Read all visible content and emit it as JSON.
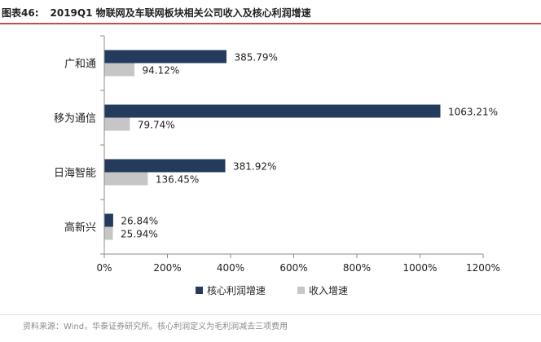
{
  "figure": {
    "number": "图表46:",
    "title": "2019Q1 物联网及车联网板块相关公司收入及核心利润增速",
    "source": "资料来源：Wind，华泰证券研究所。核心利润定义为毛利润减去三项费用"
  },
  "colors": {
    "series_core": "#243b5e",
    "series_revenue": "#c6c6c6",
    "title_rule": "#c0504d"
  },
  "chart_data": {
    "type": "bar",
    "orientation": "horizontal",
    "categories": [
      "广和通",
      "移为通信",
      "日海智能",
      "高新兴"
    ],
    "series": [
      {
        "name": "核心利润增速",
        "values": [
          385.79,
          1063.21,
          381.92,
          26.84
        ],
        "labels": [
          "385.79%",
          "1063.21%",
          "381.92%",
          "26.84%"
        ],
        "color": "#243b5e"
      },
      {
        "name": "收入增速",
        "values": [
          94.12,
          79.74,
          136.45,
          25.94
        ],
        "labels": [
          "94.12%",
          "79.74%",
          "136.45%",
          "25.94%"
        ],
        "color": "#c6c6c6"
      }
    ],
    "xlim": [
      0,
      1200
    ],
    "xticks": [
      0,
      200,
      400,
      600,
      800,
      1000,
      1200
    ],
    "xtick_labels": [
      "0%",
      "200%",
      "400%",
      "600%",
      "800%",
      "1000%",
      "1200%"
    ],
    "grid": false,
    "legend": "bottom"
  }
}
